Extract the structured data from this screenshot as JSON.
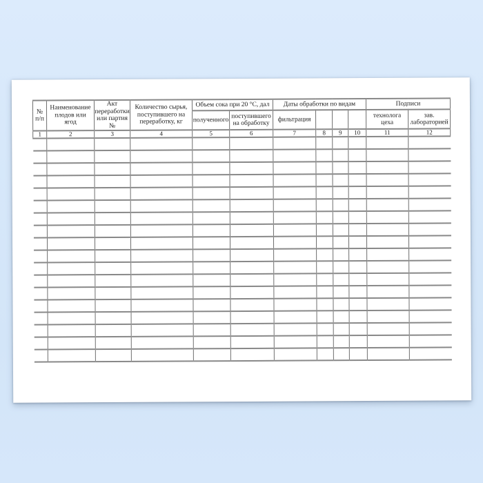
{
  "scene": {
    "background_color_top": "#dcebfc",
    "background_color_bottom": "#d3e5f8",
    "paper_color": "#ffffff",
    "grid_line_color": "#6e6e6e"
  },
  "table": {
    "merged_headers": [
      "№\nп/п",
      "Наименование\nплодов или\nягод",
      "Акт\nпереработки\nили партия №",
      "Количество сырья,\nпоступившего на\nпереработку, кг"
    ],
    "groups": [
      {
        "label": "Объем сока при 20 °С, дал"
      },
      {
        "label": "Даты обработки по видам"
      },
      {
        "label": "Подписи"
      }
    ],
    "sub_headers": [
      "полученного",
      "поступившего\nна обработку",
      "фильтрация",
      "",
      "",
      "",
      "технолога\nцеха",
      "зав.\nлабораторией"
    ],
    "column_numbers": [
      "1",
      "2",
      "3",
      "4",
      "5",
      "6",
      "7",
      "8",
      "9",
      "10",
      "11",
      "12"
    ],
    "body_row_count": 18,
    "column_count": 12
  }
}
